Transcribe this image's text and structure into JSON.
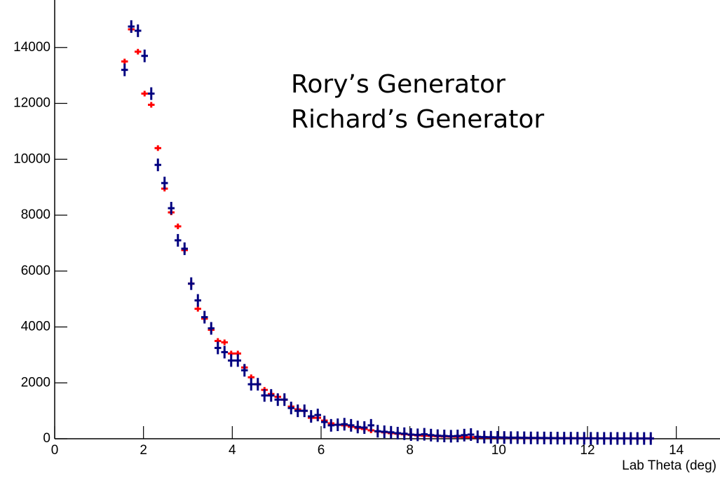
{
  "chart_data": {
    "type": "histogram",
    "xlabel": "Lab Theta (deg)",
    "annotations": [
      {
        "text": "Rory’s Generator",
        "color": "#ff0000"
      },
      {
        "text": "Richard’s Generator",
        "color": "#4472c4"
      }
    ],
    "bins": [
      1.5,
      1.65,
      1.8,
      1.95,
      2.1,
      2.25,
      2.4,
      2.55,
      2.7,
      2.85,
      3.0,
      3.15,
      3.3,
      3.45,
      3.6,
      3.75,
      3.9,
      4.05,
      4.2,
      4.35,
      4.5,
      4.65,
      4.8,
      4.95,
      5.1,
      5.25,
      5.4,
      5.55,
      5.7,
      5.85,
      6.0,
      6.15,
      6.3,
      6.45,
      6.6,
      6.75,
      6.9,
      7.05,
      7.2,
      7.35,
      7.5,
      7.65,
      7.8,
      7.95,
      8.1,
      8.25,
      8.4,
      8.55,
      8.7,
      8.85,
      9.0,
      9.15,
      9.3,
      9.45,
      9.6,
      9.75,
      9.9,
      10.05,
      10.2,
      10.35,
      10.5,
      10.65,
      10.8,
      10.95,
      11.1,
      11.25,
      11.4,
      11.55,
      11.7,
      11.85,
      12.0,
      12.15,
      12.3,
      12.45,
      12.6,
      12.75,
      12.9,
      13.05,
      13.2,
      13.35,
      13.5
    ],
    "series": [
      {
        "color": "#ff0000",
        "values": [
          13500,
          14650,
          13850,
          12350,
          11950,
          10400,
          8950,
          8100,
          7600,
          6750,
          5550,
          4650,
          4300,
          3900,
          3500,
          3450,
          3050,
          3050,
          2550,
          2200,
          1950,
          1750,
          1600,
          1500,
          1400,
          1150,
          1050,
          1000,
          750,
          750,
          650,
          550,
          500,
          480,
          430,
          380,
          350,
          300,
          260,
          230,
          200,
          180,
          160,
          140,
          120,
          110,
          100,
          90,
          80,
          75,
          70,
          60,
          55,
          50,
          45,
          42,
          40,
          38,
          35,
          32,
          30,
          28,
          26,
          25,
          23,
          22,
          20,
          19,
          18,
          17,
          16,
          15,
          14,
          13,
          12,
          12,
          11,
          10,
          10,
          9
        ]
      },
      {
        "color": "#000080",
        "values": [
          13200,
          14750,
          14600,
          13700,
          12350,
          9800,
          9150,
          8250,
          7100,
          6800,
          5550,
          4950,
          4350,
          3950,
          3250,
          3100,
          2800,
          2800,
          2450,
          1950,
          1950,
          1550,
          1550,
          1400,
          1400,
          1100,
          1000,
          1000,
          800,
          850,
          600,
          480,
          500,
          520,
          480,
          420,
          400,
          480,
          270,
          250,
          230,
          200,
          180,
          150,
          140,
          160,
          130,
          110,
          100,
          90,
          100,
          130,
          150,
          70,
          60,
          55,
          50,
          45,
          40,
          40,
          35,
          30,
          30,
          28,
          25,
          22,
          20,
          20,
          18,
          16,
          15,
          14,
          13,
          12,
          12,
          11,
          10,
          10,
          10,
          9
        ]
      }
    ],
    "xlim": [
      0,
      15
    ],
    "xticks": [
      0,
      2,
      4,
      6,
      8,
      10,
      12,
      14
    ],
    "ylim": [
      0,
      15700
    ],
    "yticks": [
      0,
      2000,
      4000,
      6000,
      8000,
      10000,
      12000,
      14000
    ]
  }
}
